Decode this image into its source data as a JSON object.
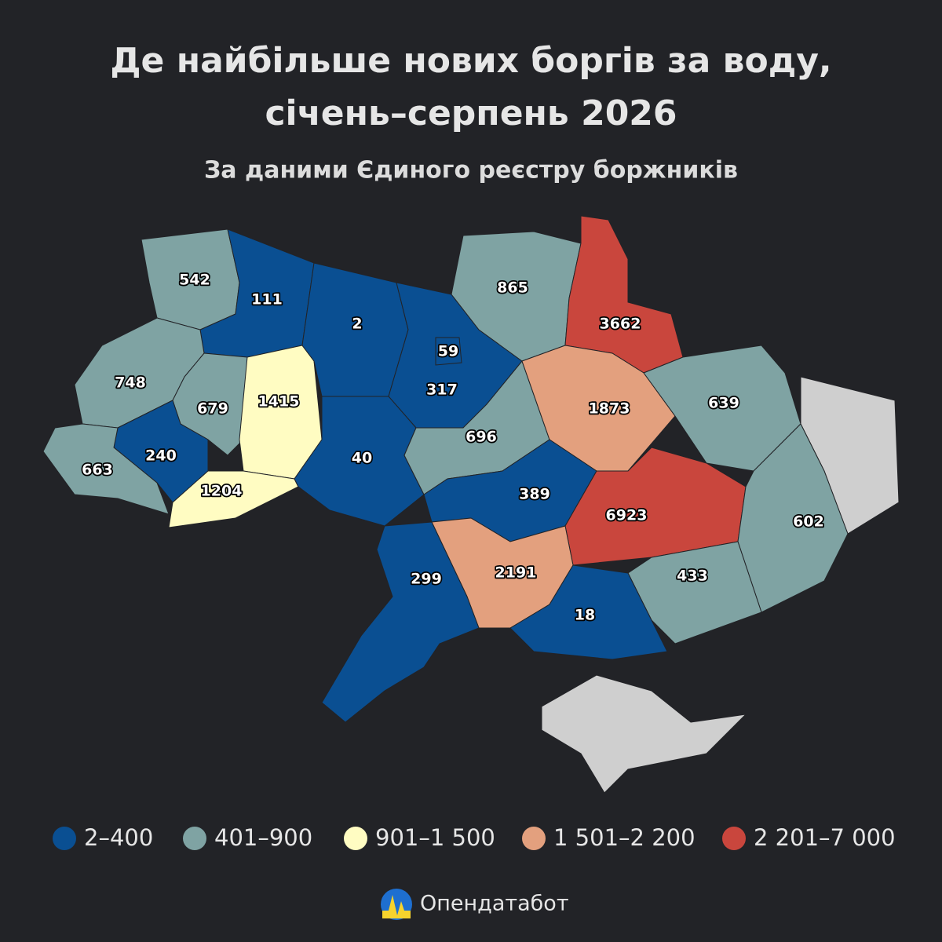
{
  "title": [
    "Де найбільше нових боргів за воду,",
    "січень–серпень 2026"
  ],
  "subtitle": "За даними Єдиного реєстру боржників",
  "regions": [
    {
      "value": 542,
      "color": "#7fa3a3"
    },
    {
      "value": 111,
      "color": "#0a4f92"
    },
    {
      "value": 748,
      "color": "#7fa3a3"
    },
    {
      "value": 679,
      "color": "#7fa3a3"
    },
    {
      "value": 1415,
      "color": "#fffcc2"
    },
    {
      "value": 240,
      "color": "#0a4f92"
    },
    {
      "value": 663,
      "color": "#7fa3a3"
    },
    {
      "value": 1204,
      "color": "#fffcc2"
    },
    {
      "value": 2,
      "color": "#0a4f92"
    },
    {
      "value": 317,
      "color": "#0a4f92"
    },
    {
      "value": 59,
      "color": "#0a4f92"
    },
    {
      "value": 865,
      "color": "#7fa3a3"
    },
    {
      "value": 3662,
      "color": "#c9463d"
    },
    {
      "value": 40,
      "color": "#0a4f92"
    },
    {
      "value": 696,
      "color": "#7fa3a3"
    },
    {
      "value": 1873,
      "color": "#e3a07e"
    },
    {
      "value": 639,
      "color": "#7fa3a3"
    },
    {
      "value": 389,
      "color": "#0a4f92"
    },
    {
      "value": 6923,
      "color": "#c9463d"
    },
    {
      "value": 602,
      "color": "#7fa3a3"
    },
    {
      "value": 433,
      "color": "#7fa3a3"
    },
    {
      "value": 2191,
      "color": "#e3a07e"
    },
    {
      "value": 18,
      "color": "#0a4f92"
    },
    {
      "value": 299,
      "color": "#0a4f92"
    }
  ],
  "legend": [
    {
      "label": "2–400",
      "color": "#0a4f92"
    },
    {
      "label": "401–900",
      "color": "#7fa3a3"
    },
    {
      "label": "901–1 500",
      "color": "#fffcc2"
    },
    {
      "label": "1 501–2 200",
      "color": "#e3a07e"
    },
    {
      "label": "2 201–7 000",
      "color": "#c9463d"
    }
  ],
  "brand": "Опендатабот"
}
